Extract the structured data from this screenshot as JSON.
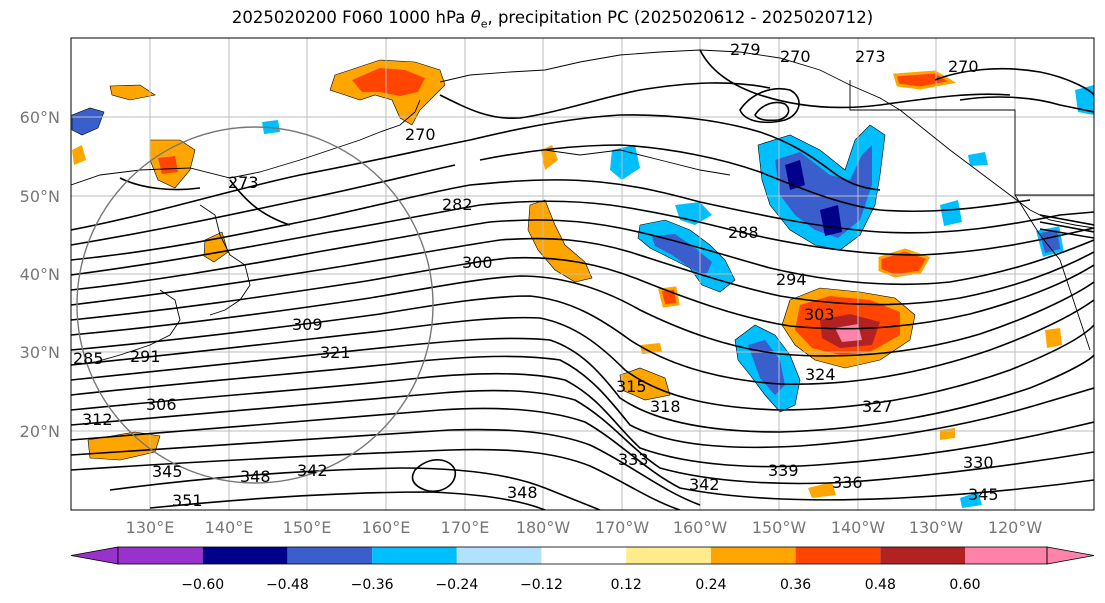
{
  "title_main": "2025020200 F060 1000 hPa ",
  "title_symbol": "θ",
  "title_sub": "e",
  "title_rest": ", precipitation PC (2025020612 - 2025020712)",
  "lat_labels": [
    "60°N",
    "50°N",
    "40°N",
    "30°N",
    "20°N"
  ],
  "lon_labels": [
    "130°E",
    "140°E",
    "150°E",
    "160°E",
    "170°E",
    "180°W",
    "170°W",
    "160°W",
    "150°W",
    "140°W",
    "130°W",
    "120°W"
  ],
  "contour_labels": [
    "279",
    "270",
    "273",
    "270",
    "270",
    "273",
    "282",
    "288",
    "294",
    "300",
    "303",
    "309",
    "321",
    "315",
    "318",
    "324",
    "327",
    "330",
    "333",
    "339",
    "336",
    "342",
    "345",
    "348",
    "342",
    "348",
    "345",
    "351",
    "312",
    "306",
    "291",
    "285"
  ],
  "colorbar": {
    "colors": [
      "#9932cc",
      "#00008b",
      "#3a5fcd",
      "#00bfff",
      "#b0e2ff",
      "#ffffff",
      "#ffec8b",
      "#ffa500",
      "#ff4500",
      "#b22222",
      "#ff82ab"
    ],
    "ticks": [
      "−0.60",
      "−0.48",
      "−0.36",
      "−0.24",
      "−0.12",
      "0.12",
      "0.24",
      "0.36",
      "0.48",
      "0.60"
    ]
  }
}
